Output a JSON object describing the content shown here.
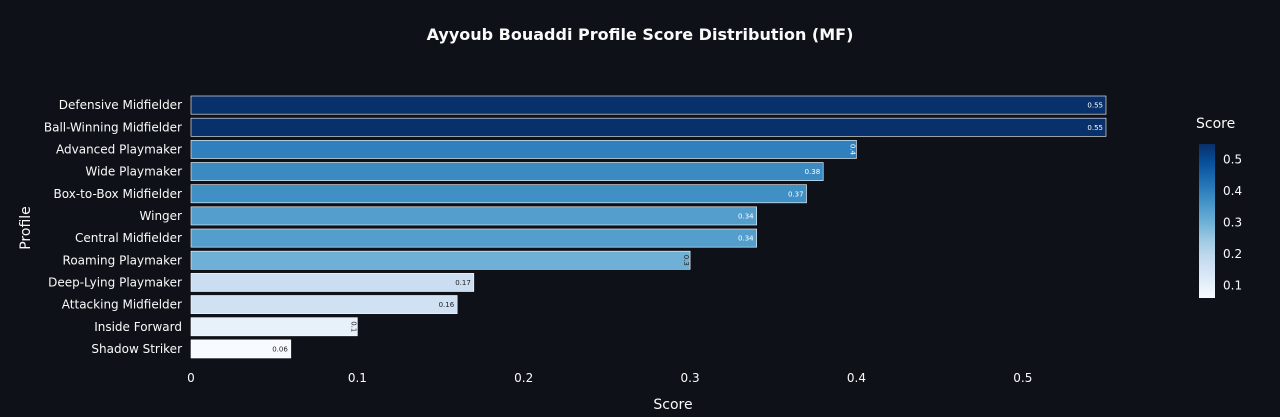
{
  "chart_data": {
    "type": "bar",
    "orientation": "horizontal",
    "title": "Ayyoub Bouaddi Profile Score Distribution (MF)",
    "xlabel": "Score",
    "ylabel": "Profile",
    "xlim": [
      0,
      0.55
    ],
    "x_ticks": [
      0,
      0.1,
      0.2,
      0.3,
      0.4,
      0.5
    ],
    "x_tick_labels": [
      "0",
      "0.1",
      "0.2",
      "0.3",
      "0.4",
      "0.5"
    ],
    "grid": false,
    "categories": [
      "Defensive Midfielder",
      "Ball-Winning Midfielder",
      "Advanced Playmaker",
      "Wide Playmaker",
      "Box-to-Box Midfielder",
      "Winger",
      "Central Midfielder",
      "Roaming Playmaker",
      "Deep-Lying Playmaker",
      "Attacking Midfielder",
      "Inside Forward",
      "Shadow Striker"
    ],
    "values": [
      0.55,
      0.55,
      0.4,
      0.38,
      0.37,
      0.34,
      0.34,
      0.3,
      0.17,
      0.16,
      0.1,
      0.06
    ],
    "data_labels": [
      "0.55",
      "0.55",
      "0.4",
      "0.38",
      "0.37",
      "0.34",
      "0.34",
      "0.3",
      "0.17",
      "0.16",
      "0.1",
      "0.06"
    ],
    "colorscale": "Blues",
    "colorbar": {
      "title": "Score",
      "ticks": [
        0.1,
        0.2,
        0.3,
        0.4,
        0.5
      ],
      "tick_labels": [
        "0.1",
        "0.2",
        "0.3",
        "0.4",
        "0.5"
      ],
      "range": [
        0.06,
        0.55
      ],
      "placement": "right"
    },
    "colors": {
      "background": "#0e1117",
      "text": "#fafafa"
    }
  }
}
